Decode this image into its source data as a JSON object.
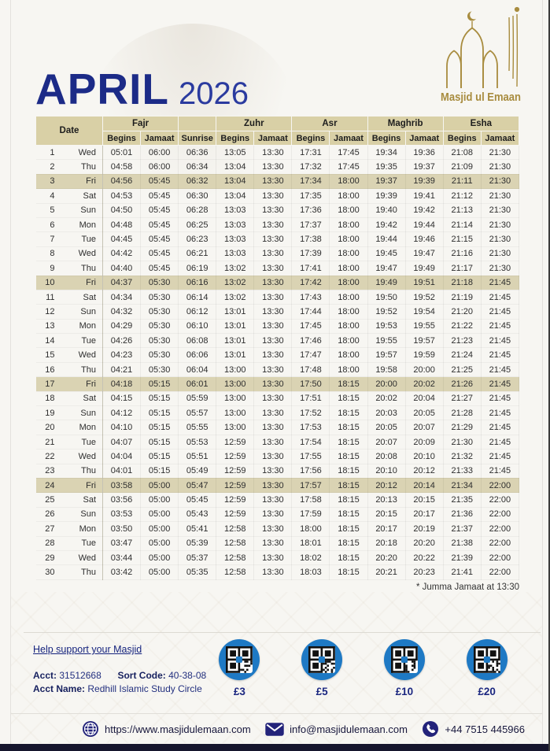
{
  "header": {
    "month": "APRIL",
    "year": "2026",
    "logo_text": "Masjid ul Emaan"
  },
  "colors": {
    "title_navy": "#1c2b87",
    "logo_gold": "#a88c3f",
    "header_beige": "#d9d0a6",
    "friday_tan": "#dad3b3",
    "qr_circle_blue": "#1e79c4",
    "link_navy": "#16247e",
    "bottom_bar": "#16162d"
  },
  "table": {
    "date_header": "Date",
    "group_headers": [
      "Fajr",
      "Zuhr",
      "Asr",
      "Maghrib",
      "Esha"
    ],
    "sub_headers": [
      "Begins",
      "Jamaat",
      "Sunrise",
      "Begins",
      "Jamaat",
      "Begins",
      "Jamaat",
      "Begins",
      "Jamaat",
      "Begins",
      "Jamaat"
    ],
    "friday_dates": [
      3,
      10,
      17,
      24
    ],
    "rows": [
      {
        "date": 1,
        "day": "Wed",
        "times": [
          "05:01",
          "06:00",
          "06:36",
          "13:05",
          "13:30",
          "17:31",
          "17:45",
          "19:34",
          "19:36",
          "21:08",
          "21:30"
        ]
      },
      {
        "date": 2,
        "day": "Thu",
        "times": [
          "04:58",
          "06:00",
          "06:34",
          "13:04",
          "13:30",
          "17:32",
          "17:45",
          "19:35",
          "19:37",
          "21:09",
          "21:30"
        ]
      },
      {
        "date": 3,
        "day": "Fri",
        "times": [
          "04:56",
          "05:45",
          "06:32",
          "13:04",
          "13:30",
          "17:34",
          "18:00",
          "19:37",
          "19:39",
          "21:11",
          "21:30"
        ]
      },
      {
        "date": 4,
        "day": "Sat",
        "times": [
          "04:53",
          "05:45",
          "06:30",
          "13:04",
          "13:30",
          "17:35",
          "18:00",
          "19:39",
          "19:41",
          "21:12",
          "21:30"
        ]
      },
      {
        "date": 5,
        "day": "Sun",
        "times": [
          "04:50",
          "05:45",
          "06:28",
          "13:03",
          "13:30",
          "17:36",
          "18:00",
          "19:40",
          "19:42",
          "21:13",
          "21:30"
        ]
      },
      {
        "date": 6,
        "day": "Mon",
        "times": [
          "04:48",
          "05:45",
          "06:25",
          "13:03",
          "13:30",
          "17:37",
          "18:00",
          "19:42",
          "19:44",
          "21:14",
          "21:30"
        ]
      },
      {
        "date": 7,
        "day": "Tue",
        "times": [
          "04:45",
          "05:45",
          "06:23",
          "13:03",
          "13:30",
          "17:38",
          "18:00",
          "19:44",
          "19:46",
          "21:15",
          "21:30"
        ]
      },
      {
        "date": 8,
        "day": "Wed",
        "times": [
          "04:42",
          "05:45",
          "06:21",
          "13:03",
          "13:30",
          "17:39",
          "18:00",
          "19:45",
          "19:47",
          "21:16",
          "21:30"
        ]
      },
      {
        "date": 9,
        "day": "Thu",
        "times": [
          "04:40",
          "05:45",
          "06:19",
          "13:02",
          "13:30",
          "17:41",
          "18:00",
          "19:47",
          "19:49",
          "21:17",
          "21:30"
        ]
      },
      {
        "date": 10,
        "day": "Fri",
        "times": [
          "04:37",
          "05:30",
          "06:16",
          "13:02",
          "13:30",
          "17:42",
          "18:00",
          "19:49",
          "19:51",
          "21:18",
          "21:45"
        ]
      },
      {
        "date": 11,
        "day": "Sat",
        "times": [
          "04:34",
          "05:30",
          "06:14",
          "13:02",
          "13:30",
          "17:43",
          "18:00",
          "19:50",
          "19:52",
          "21:19",
          "21:45"
        ]
      },
      {
        "date": 12,
        "day": "Sun",
        "times": [
          "04:32",
          "05:30",
          "06:12",
          "13:01",
          "13:30",
          "17:44",
          "18:00",
          "19:52",
          "19:54",
          "21:20",
          "21:45"
        ]
      },
      {
        "date": 13,
        "day": "Mon",
        "times": [
          "04:29",
          "05:30",
          "06:10",
          "13:01",
          "13:30",
          "17:45",
          "18:00",
          "19:53",
          "19:55",
          "21:22",
          "21:45"
        ]
      },
      {
        "date": 14,
        "day": "Tue",
        "times": [
          "04:26",
          "05:30",
          "06:08",
          "13:01",
          "13:30",
          "17:46",
          "18:00",
          "19:55",
          "19:57",
          "21:23",
          "21:45"
        ]
      },
      {
        "date": 15,
        "day": "Wed",
        "times": [
          "04:23",
          "05:30",
          "06:06",
          "13:01",
          "13:30",
          "17:47",
          "18:00",
          "19:57",
          "19:59",
          "21:24",
          "21:45"
        ]
      },
      {
        "date": 16,
        "day": "Thu",
        "times": [
          "04:21",
          "05:30",
          "06:04",
          "13:00",
          "13:30",
          "17:48",
          "18:00",
          "19:58",
          "20:00",
          "21:25",
          "21:45"
        ]
      },
      {
        "date": 17,
        "day": "Fri",
        "times": [
          "04:18",
          "05:15",
          "06:01",
          "13:00",
          "13:30",
          "17:50",
          "18:15",
          "20:00",
          "20:02",
          "21:26",
          "21:45"
        ]
      },
      {
        "date": 18,
        "day": "Sat",
        "times": [
          "04:15",
          "05:15",
          "05:59",
          "13:00",
          "13:30",
          "17:51",
          "18:15",
          "20:02",
          "20:04",
          "21:27",
          "21:45"
        ]
      },
      {
        "date": 19,
        "day": "Sun",
        "times": [
          "04:12",
          "05:15",
          "05:57",
          "13:00",
          "13:30",
          "17:52",
          "18:15",
          "20:03",
          "20:05",
          "21:28",
          "21:45"
        ]
      },
      {
        "date": 20,
        "day": "Mon",
        "times": [
          "04:10",
          "05:15",
          "05:55",
          "13:00",
          "13:30",
          "17:53",
          "18:15",
          "20:05",
          "20:07",
          "21:29",
          "21:45"
        ]
      },
      {
        "date": 21,
        "day": "Tue",
        "times": [
          "04:07",
          "05:15",
          "05:53",
          "12:59",
          "13:30",
          "17:54",
          "18:15",
          "20:07",
          "20:09",
          "21:30",
          "21:45"
        ]
      },
      {
        "date": 22,
        "day": "Wed",
        "times": [
          "04:04",
          "05:15",
          "05:51",
          "12:59",
          "13:30",
          "17:55",
          "18:15",
          "20:08",
          "20:10",
          "21:32",
          "21:45"
        ]
      },
      {
        "date": 23,
        "day": "Thu",
        "times": [
          "04:01",
          "05:15",
          "05:49",
          "12:59",
          "13:30",
          "17:56",
          "18:15",
          "20:10",
          "20:12",
          "21:33",
          "21:45"
        ]
      },
      {
        "date": 24,
        "day": "Fri",
        "times": [
          "03:58",
          "05:00",
          "05:47",
          "12:59",
          "13:30",
          "17:57",
          "18:15",
          "20:12",
          "20:14",
          "21:34",
          "22:00"
        ]
      },
      {
        "date": 25,
        "day": "Sat",
        "times": [
          "03:56",
          "05:00",
          "05:45",
          "12:59",
          "13:30",
          "17:58",
          "18:15",
          "20:13",
          "20:15",
          "21:35",
          "22:00"
        ]
      },
      {
        "date": 26,
        "day": "Sun",
        "times": [
          "03:53",
          "05:00",
          "05:43",
          "12:59",
          "13:30",
          "17:59",
          "18:15",
          "20:15",
          "20:17",
          "21:36",
          "22:00"
        ]
      },
      {
        "date": 27,
        "day": "Mon",
        "times": [
          "03:50",
          "05:00",
          "05:41",
          "12:58",
          "13:30",
          "18:00",
          "18:15",
          "20:17",
          "20:19",
          "21:37",
          "22:00"
        ]
      },
      {
        "date": 28,
        "day": "Tue",
        "times": [
          "03:47",
          "05:00",
          "05:39",
          "12:58",
          "13:30",
          "18:01",
          "18:15",
          "20:18",
          "20:20",
          "21:38",
          "22:00"
        ]
      },
      {
        "date": 29,
        "day": "Wed",
        "times": [
          "03:44",
          "05:00",
          "05:37",
          "12:58",
          "13:30",
          "18:02",
          "18:15",
          "20:20",
          "20:22",
          "21:39",
          "22:00"
        ]
      },
      {
        "date": 30,
        "day": "Thu",
        "times": [
          "03:42",
          "05:00",
          "05:35",
          "12:58",
          "13:30",
          "18:03",
          "18:15",
          "20:21",
          "20:23",
          "21:41",
          "22:00"
        ]
      }
    ]
  },
  "footnote": "* Jumma Jamaat at 13:30",
  "support": {
    "link": "Help support your Masjid",
    "acct_label": "Acct:",
    "acct_value": "31512668",
    "sort_label": "Sort Code:",
    "sort_value": "40-38-08",
    "name_label": "Acct Name:",
    "name_value": "Redhill Islamic Study Circle",
    "donations": [
      {
        "amount": "£3"
      },
      {
        "amount": "£5"
      },
      {
        "amount": "£10"
      },
      {
        "amount": "£20"
      }
    ]
  },
  "contacts": {
    "website": "https://www.masjidulemaan.com",
    "email": "info@masjidulemaan.com",
    "phone": "+44 7515 445966"
  }
}
